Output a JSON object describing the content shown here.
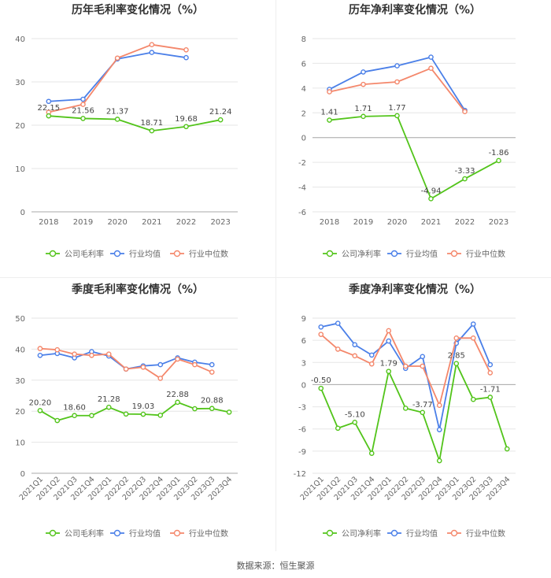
{
  "colors": {
    "company": "#52c41a",
    "avg": "#4a7fe8",
    "median": "#f4876b",
    "grid": "#e6e6e6",
    "axis": "#999999",
    "text": "#666666"
  },
  "source": "数据来源：恒生聚源",
  "chart_data": [
    {
      "id": "annual-gross",
      "type": "line",
      "title": "历年毛利率变化情况（%）",
      "categories": [
        "2018",
        "2019",
        "2020",
        "2021",
        "2022",
        "2023"
      ],
      "ylim": [
        0,
        40
      ],
      "yticks": [
        0,
        10,
        20,
        30,
        40
      ],
      "ytick_labels": [
        "0",
        "10",
        "20",
        "30",
        "40"
      ],
      "rotate_x": false,
      "series": [
        {
          "name": "公司毛利率",
          "key": "company",
          "values": [
            22.15,
            21.56,
            21.37,
            18.71,
            19.68,
            21.24
          ],
          "labels": [
            "22.15",
            "21.56",
            "21.37",
            "18.71",
            "19.68",
            "21.24"
          ]
        },
        {
          "name": "行业均值",
          "key": "avg",
          "values": [
            25.5,
            26.0,
            35.3,
            36.8,
            35.6,
            null
          ]
        },
        {
          "name": "行业中位数",
          "key": "median",
          "values": [
            23.0,
            24.8,
            35.5,
            38.6,
            37.4,
            null
          ]
        }
      ]
    },
    {
      "id": "annual-net",
      "type": "line",
      "title": "历年净利率变化情况（%）",
      "categories": [
        "2018",
        "2019",
        "2020",
        "2021",
        "2022",
        "2023"
      ],
      "ylim": [
        -6,
        8
      ],
      "yticks": [
        -6,
        -4,
        -2,
        0,
        2,
        4,
        6,
        8
      ],
      "ytick_labels": [
        "-6",
        "-4",
        "-2",
        "0",
        "2",
        "4",
        "6",
        "8"
      ],
      "rotate_x": false,
      "series": [
        {
          "name": "公司净利率",
          "key": "company",
          "values": [
            1.41,
            1.71,
            1.77,
            -4.94,
            -3.33,
            -1.86
          ],
          "labels": [
            "1.41",
            "1.71",
            "1.77",
            "-4.94",
            "-3.33",
            "-1.86"
          ]
        },
        {
          "name": "行业均值",
          "key": "avg",
          "values": [
            3.9,
            5.3,
            5.8,
            6.5,
            2.2,
            null
          ]
        },
        {
          "name": "行业中位数",
          "key": "median",
          "values": [
            3.7,
            4.3,
            4.5,
            5.6,
            2.1,
            null
          ]
        }
      ]
    },
    {
      "id": "quarterly-gross",
      "type": "line",
      "title": "季度毛利率变化情况（%）",
      "categories": [
        "2021Q1",
        "2021Q2",
        "2021Q3",
        "2021Q4",
        "2022Q1",
        "2022Q2",
        "2022Q3",
        "2022Q4",
        "2023Q1",
        "2023Q2",
        "2023Q3",
        "2023Q4"
      ],
      "ylim": [
        0,
        50
      ],
      "yticks": [
        0,
        10,
        20,
        30,
        40,
        50
      ],
      "ytick_labels": [
        "0",
        "10",
        "20",
        "30",
        "40",
        "50"
      ],
      "rotate_x": true,
      "series": [
        {
          "name": "公司毛利率",
          "key": "company",
          "values": [
            20.2,
            17.0,
            18.6,
            18.6,
            21.28,
            19.1,
            19.03,
            18.7,
            22.88,
            20.8,
            20.88,
            19.7
          ],
          "labels": [
            "20.20",
            "",
            "18.60",
            "",
            "21.28",
            "",
            "19.03",
            "",
            "22.88",
            "",
            "20.88",
            ""
          ]
        },
        {
          "name": "行业均值",
          "key": "avg",
          "values": [
            38.0,
            38.6,
            37.2,
            39.2,
            37.8,
            33.6,
            34.6,
            35.0,
            37.2,
            35.8,
            35.0,
            null
          ]
        },
        {
          "name": "行业中位数",
          "key": "median",
          "values": [
            40.2,
            39.8,
            38.4,
            38.0,
            38.4,
            33.6,
            34.2,
            30.6,
            36.8,
            35.0,
            32.6,
            null
          ]
        }
      ]
    },
    {
      "id": "quarterly-net",
      "type": "line",
      "title": "季度净利率变化情况（%）",
      "categories": [
        "2021Q1",
        "2021Q2",
        "2021Q3",
        "2021Q4",
        "2022Q1",
        "2022Q2",
        "2022Q3",
        "2022Q4",
        "2023Q1",
        "2023Q2",
        "2023Q3",
        "2023Q4"
      ],
      "ylim": [
        -12,
        9
      ],
      "yticks": [
        -12,
        -9,
        -6,
        -3,
        0,
        3,
        6,
        9
      ],
      "ytick_labels": [
        "-12",
        "-9",
        "-6",
        "-3",
        "0",
        "3",
        "6",
        "9"
      ],
      "rotate_x": true,
      "series": [
        {
          "name": "公司净利率",
          "key": "company",
          "values": [
            -0.5,
            -5.9,
            -5.1,
            -9.3,
            1.79,
            -3.2,
            -3.77,
            -10.3,
            2.85,
            -2.0,
            -1.71,
            -8.7
          ],
          "labels": [
            "-0.50",
            "",
            "-5.10",
            "",
            "1.79",
            "",
            "-3.77",
            "",
            "2.85",
            "",
            "-1.71",
            ""
          ]
        },
        {
          "name": "行业均值",
          "key": "avg",
          "values": [
            7.8,
            8.3,
            5.4,
            4.0,
            5.9,
            2.2,
            3.8,
            -6.1,
            5.6,
            8.2,
            2.7,
            null
          ]
        },
        {
          "name": "行业中位数",
          "key": "median",
          "values": [
            6.8,
            4.8,
            3.9,
            2.8,
            7.3,
            2.5,
            2.5,
            -2.8,
            6.3,
            6.3,
            1.6,
            null
          ]
        }
      ]
    }
  ]
}
